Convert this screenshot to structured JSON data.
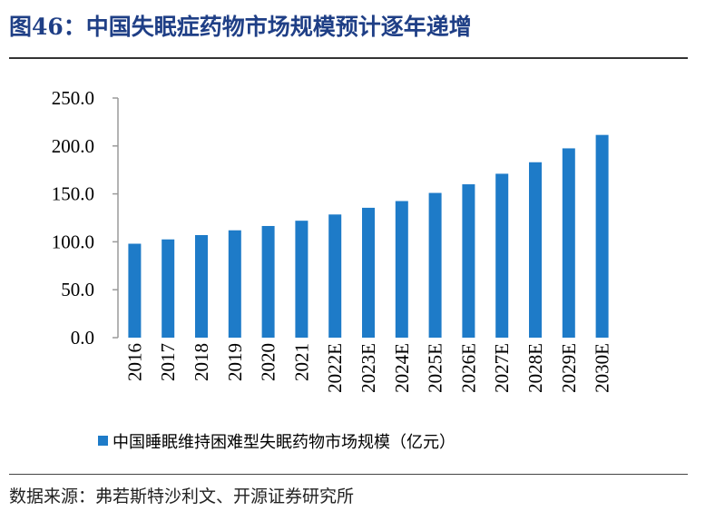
{
  "figure": {
    "title": "图46：中国失眠症药物市场规模预计逐年递增",
    "source": "数据来源：弗若斯特沙利文、开源证券研究所"
  },
  "chart_data": {
    "type": "bar",
    "categories": [
      "2016",
      "2017",
      "2018",
      "2019",
      "2020",
      "2021",
      "2022E",
      "2023E",
      "2024E",
      "2025E",
      "2026E",
      "2027E",
      "2028E",
      "2029E",
      "2030E"
    ],
    "series": [
      {
        "name": "中国睡眠维持困难型失眠药物市场规模（亿元）",
        "values": [
          98,
          102.5,
          107,
          112,
          116.5,
          122,
          128.5,
          135.5,
          142.5,
          151,
          160,
          171,
          183,
          197.5,
          211.5
        ],
        "color": "#1e7bc8"
      }
    ],
    "yticks": [
      "0.0",
      "50.0",
      "100.0",
      "150.0",
      "200.0",
      "250.0"
    ],
    "ylim": [
      0,
      250
    ],
    "grid": false,
    "legend_position": "bottom-left"
  }
}
